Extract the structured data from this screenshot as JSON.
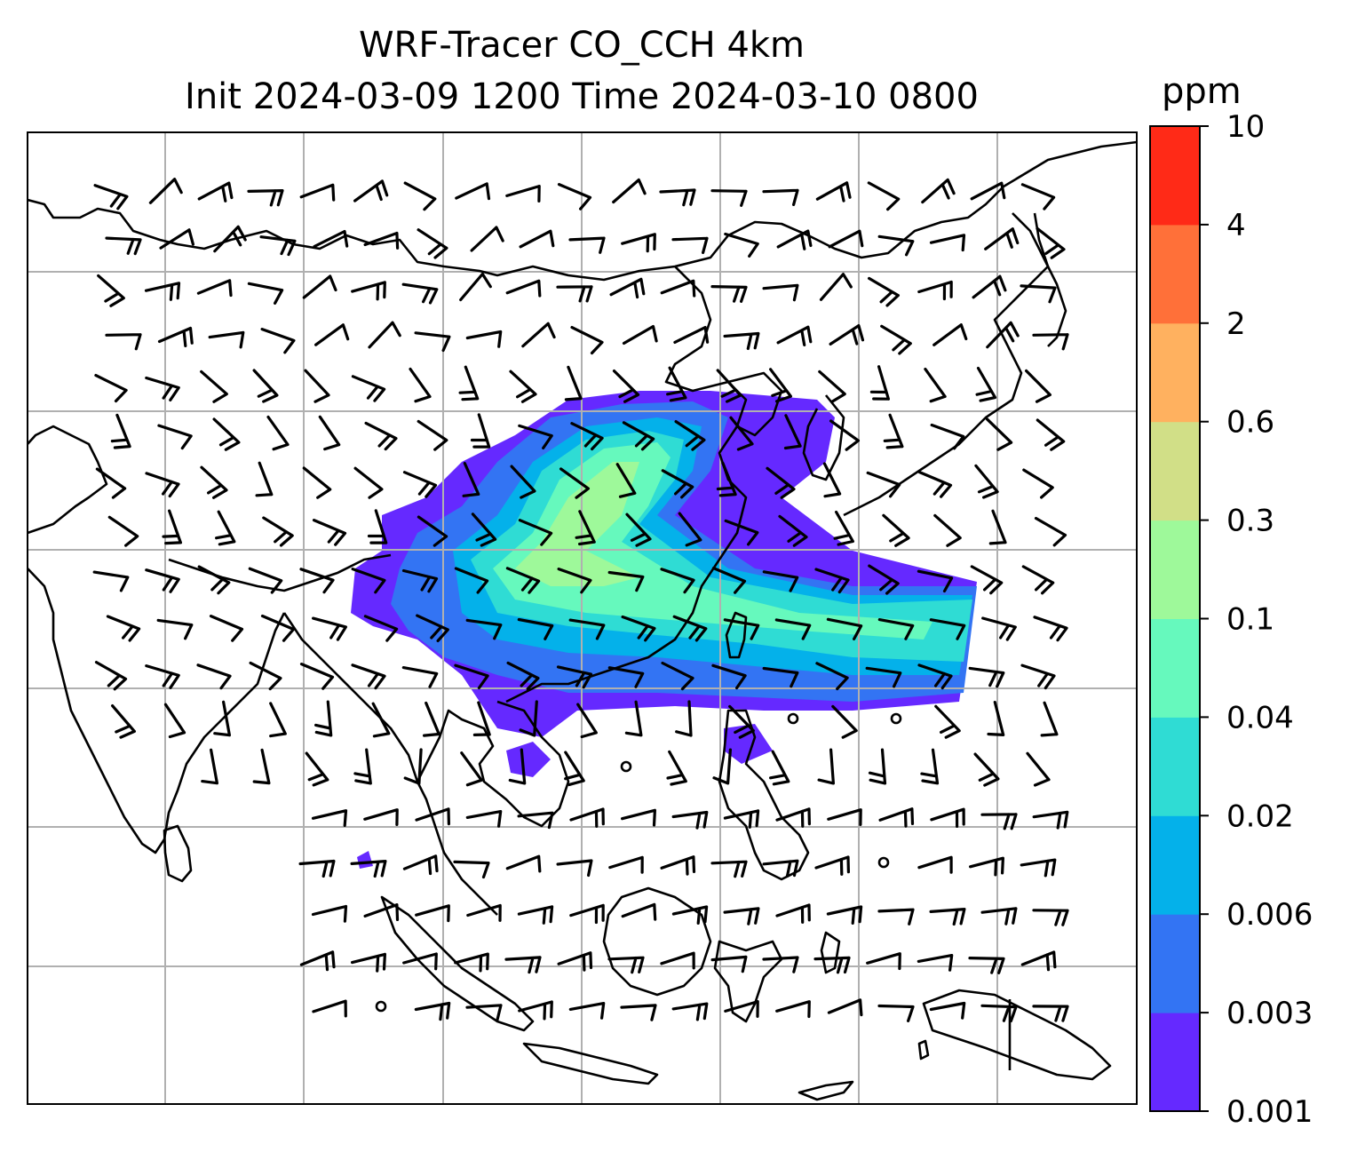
{
  "title": {
    "line1": "WRF-Tracer CO_CCH 4km",
    "line2": "Init 2024-03-09 1200 Time 2024-03-10 0800"
  },
  "colorbar": {
    "unit": "ppm",
    "levels": [
      "0.001",
      "0.003",
      "0.006",
      "0.02",
      "0.04",
      "0.1",
      "0.3",
      "0.6",
      "2",
      "4",
      "10"
    ],
    "colors": [
      "#6529ff",
      "#3374f3",
      "#04b1ea",
      "#2fdcd4",
      "#66f9bd",
      "#9ef99a",
      "#d1df87",
      "#ffb15f",
      "#ff7039",
      "#ff2a17"
    ]
  },
  "map": {
    "grid": "on",
    "coastline_color": "#000000",
    "gridline_color": "#b0b0b0",
    "overlay": "wind barbs"
  }
}
